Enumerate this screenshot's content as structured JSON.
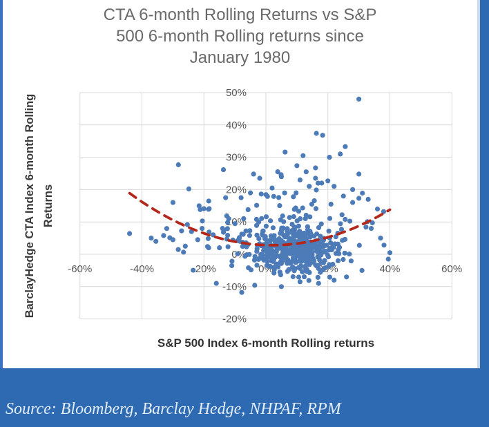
{
  "title": {
    "lines": [
      "CTA 6-month Rolling Returns vs S&P",
      "500 6-month Rolling returns since",
      "January 1980"
    ]
  },
  "source_bar": {
    "text": "Source: Bloomberg, Barclay Hedge, NHPAF, RPM",
    "bg_color": "#2E6AB2",
    "text_color": "#E3EDF9"
  },
  "colors": {
    "accent_blue": "#2E6AB2",
    "left_border_blue": "#3A72C4",
    "point_blue": "#4D7BB8",
    "trend_red": "#B4281C",
    "grid_gray": "#D9D9D9",
    "tick_gray": "#575757",
    "title_gray": "#6A6A6A"
  },
  "chart_data": {
    "type": "scatter",
    "title": "CTA 6-month Rolling Returns vs S&P 500 6-month Rolling returns since January 1980",
    "xlabel": "S&P 500 Index 6-month Rolling returns",
    "ylabel": "BarclayHedge CTA Index 6-month Rolling Returns",
    "ylabel_lines": [
      "BarclayHedge CTA Index 6-month Rolling",
      "Returns"
    ],
    "units": "percent",
    "xlim": [
      -60,
      60
    ],
    "ylim": [
      -20,
      50
    ],
    "grid": true,
    "legend": "none",
    "x_ticks": [
      {
        "v": -60,
        "label": "-60%"
      },
      {
        "v": -40,
        "label": "-40%"
      },
      {
        "v": -20,
        "label": "-20%"
      },
      {
        "v": 0,
        "label": "0%"
      },
      {
        "v": 20,
        "label": "20%"
      },
      {
        "v": 40,
        "label": "40%"
      },
      {
        "v": 60,
        "label": "60%"
      }
    ],
    "y_ticks": [
      {
        "v": 50,
        "label": "50%"
      },
      {
        "v": 40,
        "label": "40%"
      },
      {
        "v": 30,
        "label": "30%"
      },
      {
        "v": 20,
        "label": "20%"
      },
      {
        "v": 10,
        "label": "10%"
      },
      {
        "v": 0,
        "label": "0%"
      },
      {
        "v": -10,
        "label": "-10%"
      },
      {
        "v": -20,
        "label": "-20%"
      }
    ],
    "trend": {
      "style": "dashed",
      "color": "#B4281C",
      "shape": "quadratic",
      "equation_pct": "y = 0.0076*(x-2)^2 + 2.8",
      "a": 0.0076,
      "vertex": [
        2,
        2.8
      ],
      "x_range": [
        -44,
        40
      ]
    },
    "point_color": "#4D7BB8",
    "point_radius_px": 3.6,
    "points_outliers": [
      [
        -44,
        6.4
      ],
      [
        -37,
        5
      ],
      [
        -35.5,
        4
      ],
      [
        -33,
        5.8
      ],
      [
        -31,
        5.1
      ],
      [
        -30,
        4.5
      ],
      [
        -30,
        16
      ],
      [
        -26,
        2.5
      ],
      [
        -24,
        7
      ],
      [
        -22,
        4.5
      ],
      [
        -20.5,
        10.3
      ],
      [
        -20,
        14.1
      ],
      [
        -18.5,
        13.9
      ],
      [
        -17,
        6
      ],
      [
        -16,
        -9
      ],
      [
        -15,
        2
      ],
      [
        -14,
        8
      ],
      [
        -13,
        17.5
      ],
      [
        -12,
        11
      ],
      [
        -11,
        -3.5
      ],
      [
        30,
        48
      ],
      [
        16.3,
        37.4
      ],
      [
        18.3,
        36.8
      ],
      [
        25.6,
        33.3
      ],
      [
        24,
        31
      ],
      [
        20.5,
        30
      ],
      [
        6.2,
        31.6
      ],
      [
        12,
        30.5
      ],
      [
        -4,
        24.8
      ],
      [
        4.9,
        24.6
      ],
      [
        10,
        27.4
      ],
      [
        16,
        26.7
      ],
      [
        16,
        23.5
      ],
      [
        20,
        22.7
      ],
      [
        30,
        17.3
      ],
      [
        30,
        24.8
      ],
      [
        28,
        20
      ],
      [
        13,
        25.5
      ],
      [
        5,
        24
      ],
      [
        -2,
        23.5
      ],
      [
        11,
        23
      ],
      [
        18,
        22
      ],
      [
        22,
        21
      ],
      [
        2,
        20.5
      ],
      [
        -5,
        19
      ],
      [
        14,
        21
      ],
      [
        25,
        18
      ],
      [
        -8,
        17.5
      ],
      [
        33,
        17
      ],
      [
        28,
        16
      ],
      [
        21,
        15.5
      ],
      [
        36,
        14
      ],
      [
        38,
        13.2
      ],
      [
        34,
        8
      ],
      [
        37,
        5
      ],
      [
        40,
        0.5
      ],
      [
        39.5,
        -1.5
      ],
      [
        31,
        -5
      ],
      [
        26,
        -7
      ],
      [
        -7.8,
        -11.8
      ],
      [
        -3.6,
        -9.6
      ],
      [
        11,
        -8.5
      ],
      [
        5,
        -10
      ],
      [
        17,
        -9
      ],
      [
        22,
        -8
      ]
    ],
    "point_clusters": [
      {
        "count": 330,
        "cx": 9,
        "cy": 1.2,
        "sx": 7.5,
        "sy": 3.2
      },
      {
        "count": 130,
        "cx": 7,
        "cy": 4.5,
        "sx": 13,
        "sy": 5.5
      },
      {
        "count": 45,
        "cx": 4,
        "cy": 11,
        "sx": 16,
        "sy": 6
      }
    ],
    "cluster_bounds": {
      "x": [
        -34,
        39.5
      ],
      "y": [
        -13,
        46
      ]
    },
    "seed": 42
  }
}
